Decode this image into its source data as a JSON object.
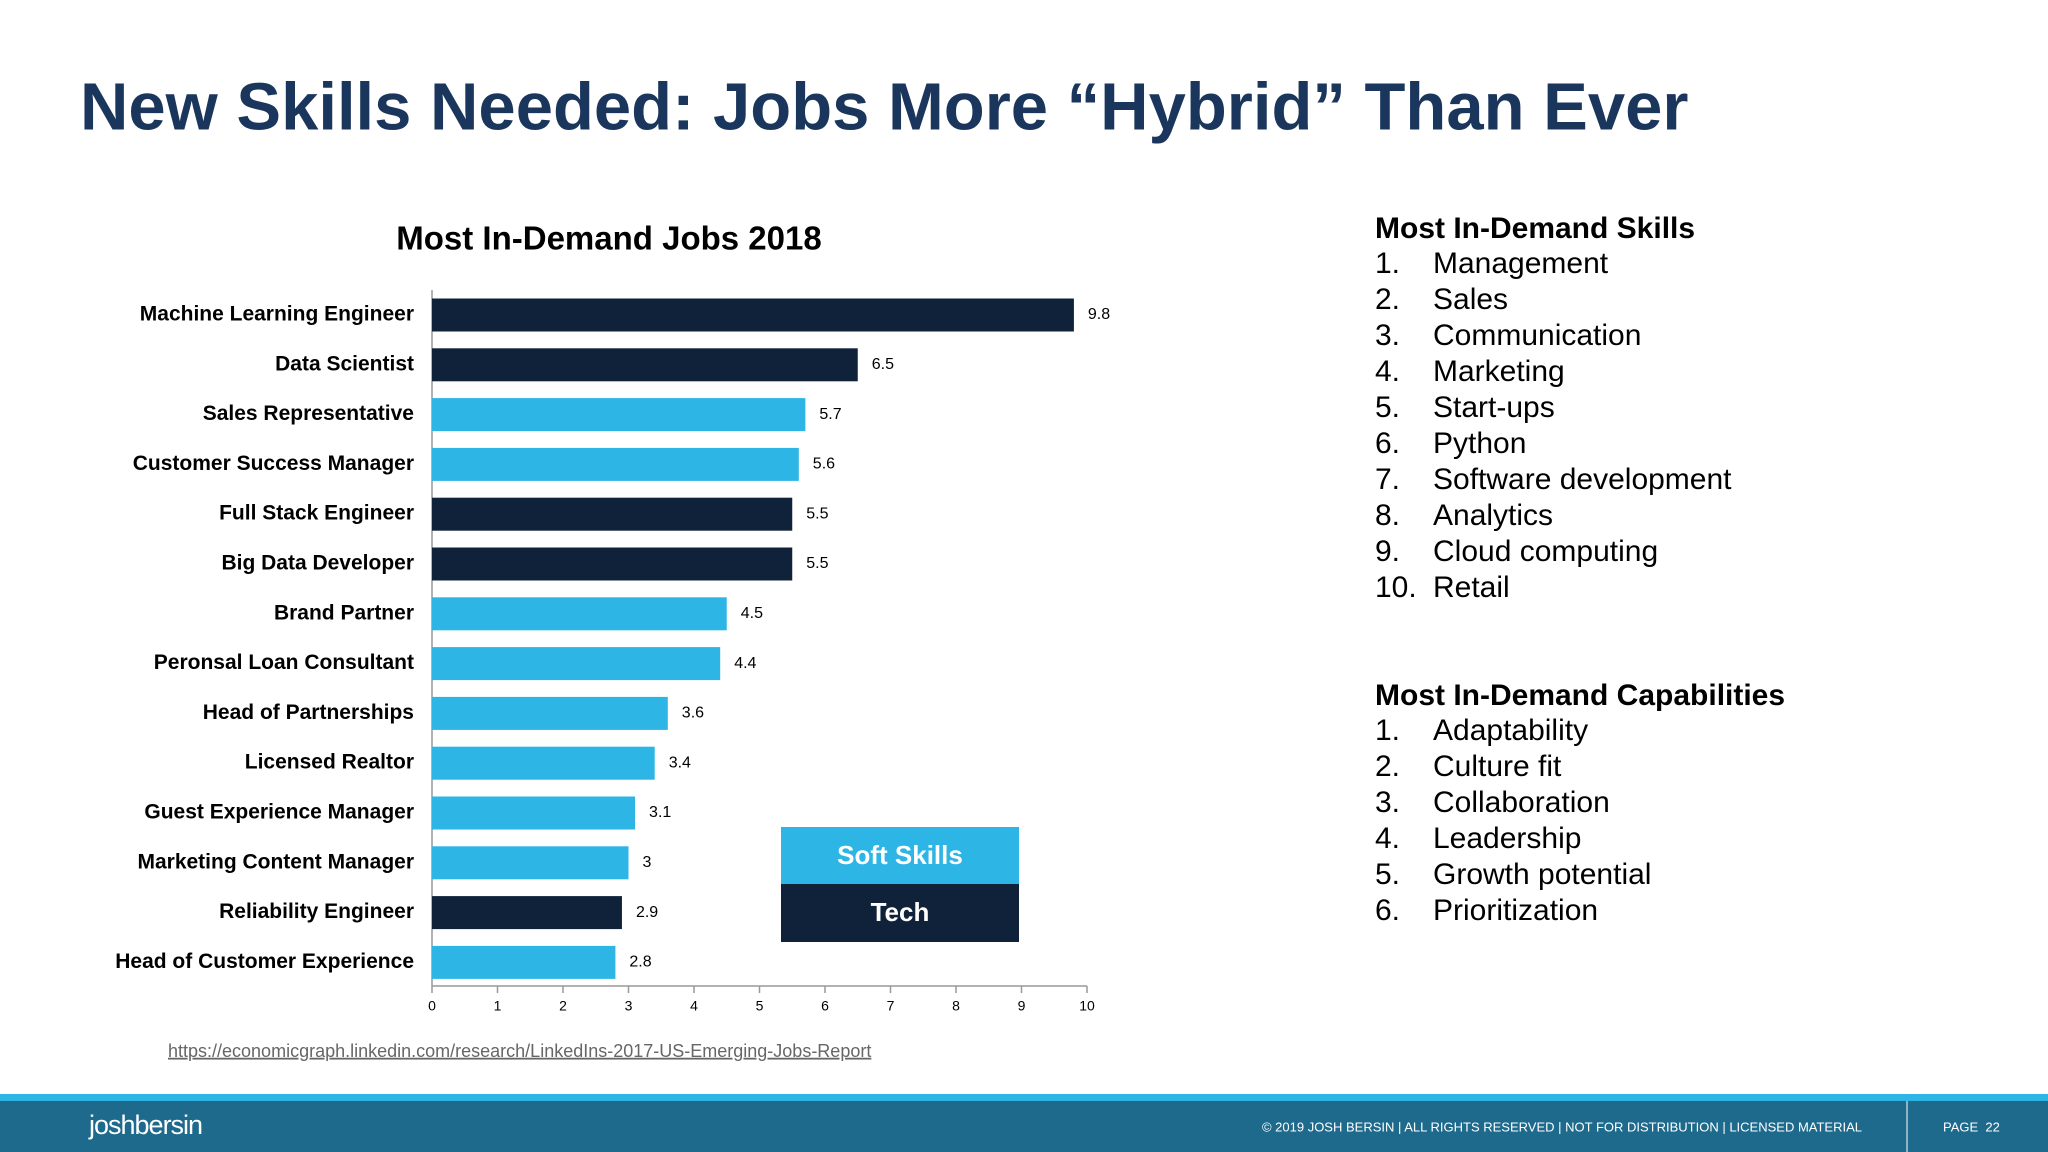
{
  "slide_title": "New Skills Needed: Jobs More “Hybrid” Than Ever",
  "chart_data": {
    "type": "hbar",
    "title": "Most In-Demand Jobs 2018",
    "categories": [
      "Machine Learning Engineer",
      "Data Scientist",
      "Sales Representative",
      "Customer Success Manager",
      "Full Stack Engineer",
      "Big Data Developer",
      "Brand Partner",
      "Peronsal Loan Consultant",
      "Head of Partnerships",
      "Licensed Realtor",
      "Guest Experience Manager",
      "Marketing Content Manager",
      "Reliability Engineer",
      "Head of Customer Experience"
    ],
    "series": [
      {
        "name": "Soft Skills",
        "color": "#2db6e5",
        "values": [
          null,
          null,
          5.7,
          5.6,
          null,
          null,
          4.5,
          4.4,
          3.6,
          3.4,
          3.1,
          3,
          null,
          2.8
        ]
      },
      {
        "name": "Tech",
        "color": "#0f2239",
        "values": [
          9.8,
          6.5,
          null,
          null,
          5.5,
          5.5,
          null,
          null,
          null,
          null,
          null,
          null,
          2.9,
          null
        ]
      }
    ],
    "xlim": [
      0,
      10
    ],
    "xticks": [
      0,
      1,
      2,
      3,
      4,
      5,
      6,
      7,
      8,
      9,
      10
    ]
  },
  "source_url": "https://economicgraph.linkedin.com/research/LinkedIns-2017-US-Emerging-Jobs-Report",
  "skills": {
    "title": "Most In-Demand Skills",
    "items": [
      {
        "number": "1.",
        "text": "Management"
      },
      {
        "number": "2.",
        "text": "Sales"
      },
      {
        "number": "3.",
        "text": "Communication"
      },
      {
        "number": "4.",
        "text": "Marketing"
      },
      {
        "number": "5.",
        "text": "Start-ups"
      },
      {
        "number": "6.",
        "text": "Python"
      },
      {
        "number": "7.",
        "text": "Software development"
      },
      {
        "number": "8.",
        "text": "Analytics"
      },
      {
        "number": "9.",
        "text": "Cloud computing"
      },
      {
        "number": "10.",
        "text": "Retail"
      }
    ]
  },
  "capabilities": {
    "title": "Most In-Demand Capabilities",
    "items": [
      {
        "number": "1.",
        "text": "Adaptability"
      },
      {
        "number": "2.",
        "text": "Culture fit"
      },
      {
        "number": "3.",
        "text": "Collaboration"
      },
      {
        "number": "4.",
        "text": "Leadership"
      },
      {
        "number": "5.",
        "text": "Growth potential"
      },
      {
        "number": "6.",
        "text": "Prioritization"
      }
    ]
  },
  "footer": {
    "brand": "joshbersin",
    "copyright": "© 2019 JOSH BERSIN | ALL RIGHTS RESERVED | NOT FOR DISTRIBUTION | LICENSED MATERIAL",
    "page": "PAGE  22"
  }
}
